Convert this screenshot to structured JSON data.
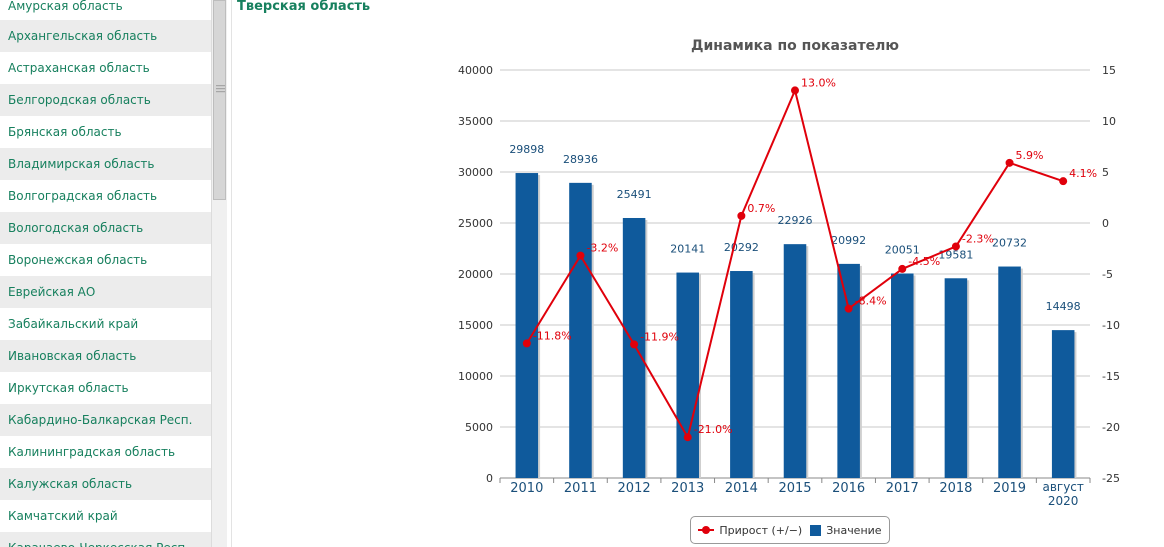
{
  "sidebar": {
    "items": [
      {
        "label": "Амурская область"
      },
      {
        "label": "Архангельская область"
      },
      {
        "label": "Астраханская область"
      },
      {
        "label": "Белгородская область"
      },
      {
        "label": "Брянская область"
      },
      {
        "label": "Владимирская область"
      },
      {
        "label": "Волгоградская область"
      },
      {
        "label": "Вологодская область"
      },
      {
        "label": "Воронежская область"
      },
      {
        "label": "Еврейская АО"
      },
      {
        "label": "Забайкальский край"
      },
      {
        "label": "Ивановская область"
      },
      {
        "label": "Иркутская область"
      },
      {
        "label": "Кабардино-Балкарская Респ."
      },
      {
        "label": "Калининградская область"
      },
      {
        "label": "Калужская область"
      },
      {
        "label": "Камчатский край"
      },
      {
        "label": "Карачаево-Черкесская Респ."
      }
    ]
  },
  "header": {
    "region": "Тверская область"
  },
  "scroll_grip_icon": "grip-lines-icon",
  "chart_data": {
    "type": "bar",
    "title": "Динамика по показателю",
    "categories": [
      "2010",
      "2011",
      "2012",
      "2013",
      "2014",
      "2015",
      "2016",
      "2017",
      "2018",
      "2019",
      "август 2020"
    ],
    "series": [
      {
        "name": "Значение",
        "type": "bar",
        "axis": "left",
        "color": "#0f5a9c",
        "values": [
          29898,
          28936,
          25491,
          20141,
          20292,
          22926,
          20992,
          20051,
          19581,
          20732,
          14498
        ]
      },
      {
        "name": "Прирост (+/−)",
        "type": "line",
        "axis": "right",
        "color": "#e0000b",
        "values": [
          -11.8,
          -3.2,
          -11.9,
          -21.0,
          0.7,
          13.0,
          -8.4,
          -4.5,
          -2.3,
          5.9,
          4.1
        ],
        "labels": [
          "-11.8%",
          "-3.2%",
          "-11.9%",
          "-21.0%",
          "0.7%",
          "13.0%",
          "-8.4%",
          "-4.5%",
          "-2.3%",
          "5.9%",
          "4.1%"
        ]
      }
    ],
    "y_left": {
      "min": 0,
      "max": 40000,
      "ticks": [
        "0",
        "5000",
        "10000",
        "15000",
        "20000",
        "25000",
        "30000",
        "35000",
        "40000"
      ]
    },
    "y_right": {
      "min": -25,
      "max": 15,
      "ticks": [
        "-25",
        "-20",
        "-15",
        "-10",
        "-5",
        "0",
        "5",
        "10",
        "15"
      ]
    },
    "grid": true,
    "legend_position": "bottom-center"
  }
}
